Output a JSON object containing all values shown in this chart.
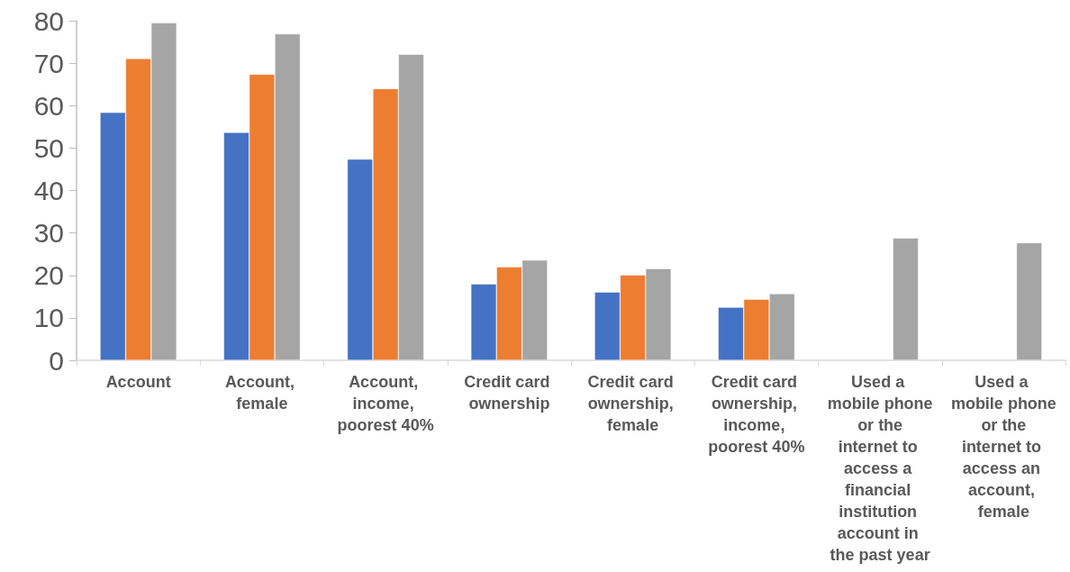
{
  "chart_data": {
    "type": "bar",
    "categories": [
      "Account",
      "Account, female",
      "Account, income, poorest 40%",
      "Credit card ownership",
      "Credit card ownership, female",
      "Credit card ownership, income, poorest 40%",
      "Used a mobile phone or the internet to access a financial institution account in the past year",
      "Used a mobile phone or the internet to access an account, female"
    ],
    "series": [
      {
        "color": "#4472c4",
        "values": [
          58.4,
          53.7,
          47.4,
          18.0,
          16.1,
          12.5,
          null,
          null
        ]
      },
      {
        "color": "#ed7d31",
        "values": [
          71.1,
          67.4,
          64.0,
          22.0,
          20.1,
          14.4,
          null,
          null
        ]
      },
      {
        "color": "#a5a5a5",
        "values": [
          79.5,
          76.9,
          72.1,
          23.6,
          21.6,
          15.7,
          28.8,
          27.7
        ]
      }
    ],
    "ylim": [
      0,
      80
    ],
    "yticks": [
      0,
      10,
      20,
      30,
      40,
      50,
      60,
      70,
      80
    ],
    "grid": false
  }
}
